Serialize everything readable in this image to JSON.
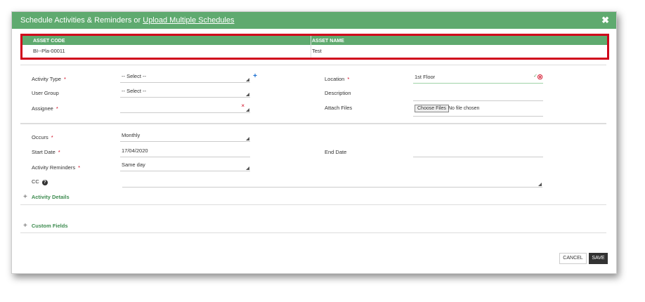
{
  "header": {
    "title_prefix": "Schedule Activities & Reminders or ",
    "title_link": "Upload Multiple Schedules",
    "close": "✖"
  },
  "asset_table": {
    "columns": [
      "ASSET CODE",
      "ASSET NAME"
    ],
    "row": [
      "BI--Pla-00011",
      "Test"
    ]
  },
  "form": {
    "activity_type": {
      "label": "Activity Type",
      "value": "-- Select --",
      "required": "*"
    },
    "user_group": {
      "label": "User Group",
      "value": "-- Select --"
    },
    "assignee": {
      "label": "Assignee",
      "value": "",
      "required": "*",
      "clear": "×"
    },
    "location": {
      "label": "Location",
      "value": "1st Floor",
      "required": "*",
      "check": "✓",
      "clear": "⊗"
    },
    "description": {
      "label": "Description",
      "value": ""
    },
    "attach_files": {
      "label": "Attach Files",
      "button": "Choose Files",
      "status": "No file chosen"
    },
    "occurs": {
      "label": "Occurs",
      "value": "Monthly",
      "required": "*"
    },
    "start_date": {
      "label": "Start Date",
      "value": "17/04/2020",
      "required": "*"
    },
    "end_date": {
      "label": "End Date",
      "value": ""
    },
    "activity_reminders": {
      "label": "Activity Reminders",
      "value": "Same day",
      "required": "*"
    },
    "cc": {
      "label": "CC",
      "value": ""
    }
  },
  "sections": {
    "activity_details": "Activity Details",
    "custom_fields": "Custom Fields",
    "expand": "+"
  },
  "buttons": {
    "cancel": "CANCEL",
    "save": "SAVE"
  }
}
